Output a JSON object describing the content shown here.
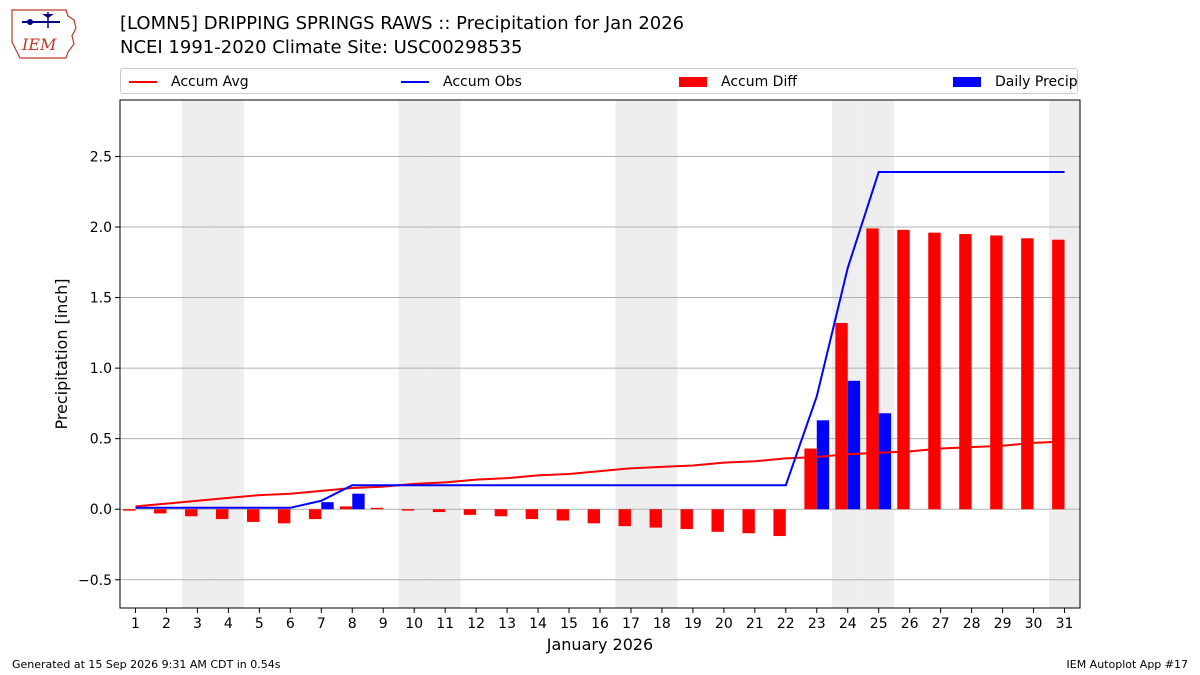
{
  "header": {
    "title_line1": "[LOMN5] DRIPPING SPRINGS RAWS :: Precipitation for Jan 2026",
    "title_line2": "NCEI 1991-2020 Climate Site: USC00298535",
    "logo_text": "IEM"
  },
  "legend": {
    "accum_avg": "Accum Avg",
    "accum_obs": "Accum Obs",
    "accum_diff": "Accum Diff",
    "daily_precip": "Daily Precip",
    "placement": "top, above plot"
  },
  "footer": {
    "generated": "Generated at 15 Sep 2026 9:31 AM CDT in 0.54s",
    "app": "IEM Autoplot App #17"
  },
  "colors": {
    "accum_avg": "#ff0000",
    "accum_obs": "#0000ff",
    "accum_diff": "#ff0000",
    "daily_precip": "#0000ff",
    "weekend_shade": "#eeeeee",
    "grid": "#b0b0b0"
  },
  "chart_data": {
    "type": "bar",
    "xlabel": "January 2026",
    "ylabel": "Precipitation [inch]",
    "ylim": [
      -0.7,
      2.9
    ],
    "yticks": [
      -0.5,
      0.0,
      0.5,
      1.0,
      1.5,
      2.0,
      2.5
    ],
    "ytick_labels": [
      "−0.5",
      "0.0",
      "0.5",
      "1.0",
      "1.5",
      "2.0",
      "2.5"
    ],
    "days": [
      1,
      2,
      3,
      4,
      5,
      6,
      7,
      8,
      9,
      10,
      11,
      12,
      13,
      14,
      15,
      16,
      17,
      18,
      19,
      20,
      21,
      22,
      23,
      24,
      25,
      26,
      27,
      28,
      29,
      30,
      31
    ],
    "shaded_days": [
      3,
      4,
      10,
      11,
      17,
      18,
      24,
      25,
      31
    ],
    "grid": "horizontal",
    "series": [
      {
        "name": "Accum Avg",
        "type": "line",
        "values": [
          0.02,
          0.04,
          0.06,
          0.08,
          0.1,
          0.11,
          0.13,
          0.15,
          0.16,
          0.18,
          0.19,
          0.21,
          0.22,
          0.24,
          0.25,
          0.27,
          0.29,
          0.3,
          0.31,
          0.33,
          0.34,
          0.36,
          0.37,
          0.39,
          0.4,
          0.41,
          0.43,
          0.44,
          0.45,
          0.47,
          0.48
        ]
      },
      {
        "name": "Accum Obs",
        "type": "line",
        "values": [
          0.01,
          0.01,
          0.01,
          0.01,
          0.01,
          0.01,
          0.06,
          0.17,
          0.17,
          0.17,
          0.17,
          0.17,
          0.17,
          0.17,
          0.17,
          0.17,
          0.17,
          0.17,
          0.17,
          0.17,
          0.17,
          0.17,
          0.8,
          1.71,
          2.39,
          2.39,
          2.39,
          2.39,
          2.39,
          2.39,
          2.39
        ]
      },
      {
        "name": "Accum Diff",
        "type": "bar",
        "values": [
          -0.01,
          -0.03,
          -0.05,
          -0.07,
          -0.09,
          -0.1,
          -0.07,
          0.02,
          0.01,
          -0.01,
          -0.02,
          -0.04,
          -0.05,
          -0.07,
          -0.08,
          -0.1,
          -0.12,
          -0.13,
          -0.14,
          -0.16,
          -0.17,
          -0.19,
          0.43,
          1.32,
          1.99,
          1.98,
          1.96,
          1.95,
          1.94,
          1.92,
          1.91
        ]
      },
      {
        "name": "Daily Precip",
        "type": "bar",
        "values": [
          0.0,
          0.0,
          0.0,
          0.0,
          0.0,
          0.0,
          0.05,
          0.11,
          0.0,
          0.0,
          0.0,
          0.0,
          0.0,
          0.0,
          0.0,
          0.0,
          0.0,
          0.0,
          0.0,
          0.0,
          0.0,
          0.0,
          0.63,
          0.91,
          0.68,
          0.0,
          0.0,
          0.0,
          0.0,
          0.0,
          0.0
        ]
      }
    ]
  }
}
